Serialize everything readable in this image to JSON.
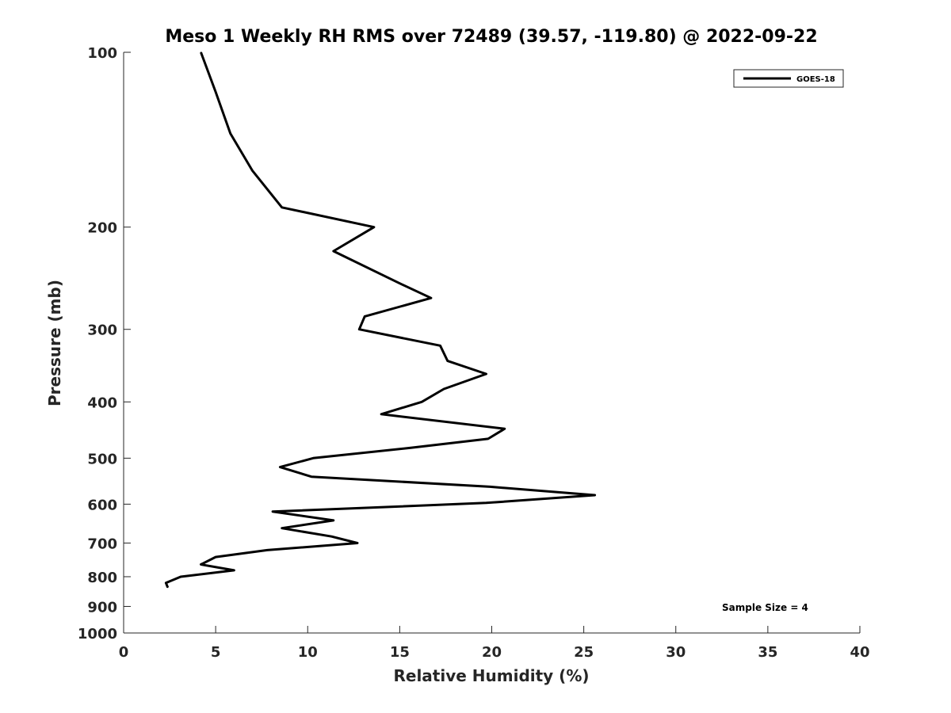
{
  "chart_data": {
    "type": "line",
    "title": "Meso 1 Weekly RH RMS over 72489 (39.57, -119.80) @ 2022-09-22",
    "xlabel": "Relative Humidity (%)",
    "ylabel": "Pressure (mb)",
    "xlim": [
      0,
      40
    ],
    "ylim": [
      100,
      1000
    ],
    "yscale": "log",
    "yreversed": true,
    "grid": false,
    "legend_position": "top-right",
    "xticks": [
      0,
      5,
      10,
      15,
      20,
      25,
      30,
      35,
      40
    ],
    "yticks": [
      100,
      200,
      300,
      400,
      500,
      600,
      700,
      800,
      900,
      1000
    ],
    "series": [
      {
        "name": "GOES-18",
        "color": "#000000",
        "points": [
          {
            "x": 4.2,
            "y": 100
          },
          {
            "x": 5.0,
            "y": 117
          },
          {
            "x": 5.8,
            "y": 138
          },
          {
            "x": 7.0,
            "y": 160
          },
          {
            "x": 8.6,
            "y": 185
          },
          {
            "x": 13.6,
            "y": 200
          },
          {
            "x": 11.4,
            "y": 220
          },
          {
            "x": 15.0,
            "y": 250
          },
          {
            "x": 16.7,
            "y": 265
          },
          {
            "x": 13.1,
            "y": 285
          },
          {
            "x": 12.8,
            "y": 300
          },
          {
            "x": 17.2,
            "y": 320
          },
          {
            "x": 17.6,
            "y": 340
          },
          {
            "x": 19.7,
            "y": 358
          },
          {
            "x": 17.4,
            "y": 380
          },
          {
            "x": 16.2,
            "y": 400
          },
          {
            "x": 14.0,
            "y": 420
          },
          {
            "x": 20.7,
            "y": 445
          },
          {
            "x": 19.8,
            "y": 463
          },
          {
            "x": 15.6,
            "y": 480
          },
          {
            "x": 10.3,
            "y": 500
          },
          {
            "x": 8.5,
            "y": 518
          },
          {
            "x": 10.2,
            "y": 538
          },
          {
            "x": 19.9,
            "y": 560
          },
          {
            "x": 25.6,
            "y": 579
          },
          {
            "x": 19.7,
            "y": 597
          },
          {
            "x": 8.1,
            "y": 618
          },
          {
            "x": 11.4,
            "y": 640
          },
          {
            "x": 8.6,
            "y": 660
          },
          {
            "x": 11.3,
            "y": 682
          },
          {
            "x": 12.7,
            "y": 700
          },
          {
            "x": 7.8,
            "y": 720
          },
          {
            "x": 5.0,
            "y": 740
          },
          {
            "x": 4.2,
            "y": 762
          },
          {
            "x": 6.0,
            "y": 780
          },
          {
            "x": 3.1,
            "y": 800
          },
          {
            "x": 2.3,
            "y": 820
          },
          {
            "x": 2.4,
            "y": 835
          }
        ]
      }
    ],
    "annotations": [
      {
        "text": "Sample Size = 4",
        "position": "bottom-right"
      }
    ]
  }
}
